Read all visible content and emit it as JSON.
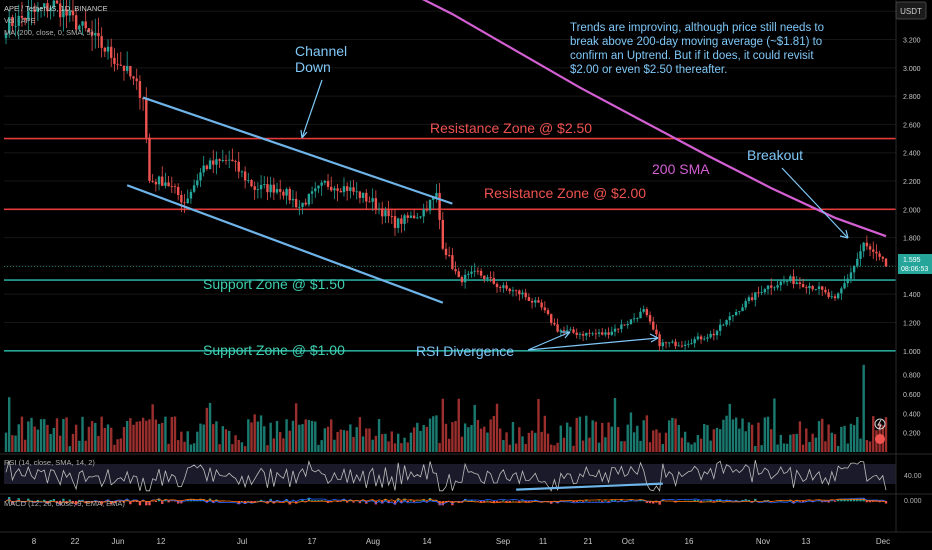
{
  "header": {
    "symbol_line": "APE / TetherUS, 1D, BINANCE",
    "volume_line": "Vol · APE",
    "ma_line": "MA (200, close, 0, SMA, 5)",
    "currency": "USDT"
  },
  "note": {
    "lines": [
      "Trends are improving, although price still needs to",
      "break above 200-day moving average (~$1.81) to",
      "confirm an Uptrend. But if it does, it could revisit",
      "$2.00 or even $2.50 thereafter."
    ]
  },
  "annotations": {
    "channel_down_1": "Channel",
    "channel_down_2": "Down",
    "resistance_250": "Resistance Zone @ $2.50",
    "resistance_200": "Resistance Zone @ $2.00",
    "sma_200": "200 SMA",
    "breakout": "Breakout",
    "support_150": "Support Zone @ $1.50",
    "support_100": "Support Zone @ $1.00",
    "rsi_divergence": "RSI Divergence"
  },
  "price_tag": {
    "price": "1.595",
    "countdown": "08:06:53"
  },
  "rsi_panel": {
    "label": "RSI (14, close, SMA, 14, 2)",
    "level": "40.00"
  },
  "macd_panel": {
    "label": "MACD (12, 26, close, 9, EMA, EMA)",
    "level": "0.000"
  },
  "colors": {
    "up": "#26a69a",
    "down": "#ef5350",
    "channel": "#6fb4e8",
    "resistance": "#e33b3b",
    "support": "#26a69a",
    "sma": "#d35fd3",
    "annot_red": "#ef5350",
    "annot_green": "#3fd0b0",
    "annot_blue": "#7fc8f8"
  },
  "chart_data": {
    "type": "candlestick",
    "x_ticks": [
      "8",
      "22",
      "Jun",
      "12",
      "Jul",
      "17",
      "Aug",
      "14",
      "Sep",
      "11",
      "21",
      "Oct",
      "16",
      "Nov",
      "13",
      "Dec"
    ],
    "price_axis_ticks": [
      "3.400",
      "3.200",
      "3.000",
      "2.800",
      "2.600",
      "2.400",
      "2.200",
      "2.000",
      "1.800",
      "1.600",
      "1.400",
      "1.200",
      "1.000"
    ],
    "volume_axis_ticks": [
      "0.800",
      "0.600",
      "0.400",
      "0.200"
    ],
    "price_range": [
      0.85,
      3.55
    ],
    "anchors": [
      [
        0,
        3.3
      ],
      [
        15,
        3.45
      ],
      [
        28,
        3.2
      ],
      [
        37,
        3.0
      ],
      [
        43,
        2.8
      ],
      [
        45,
        2.2
      ],
      [
        50,
        2.2
      ],
      [
        56,
        2.05
      ],
      [
        62,
        2.3
      ],
      [
        70,
        2.35
      ],
      [
        78,
        2.15
      ],
      [
        86,
        2.15
      ],
      [
        92,
        2.02
      ],
      [
        100,
        2.18
      ],
      [
        107,
        2.15
      ],
      [
        115,
        2.05
      ],
      [
        122,
        1.9
      ],
      [
        130,
        1.97
      ],
      [
        135,
        2.1
      ],
      [
        137,
        1.75
      ],
      [
        142,
        1.5
      ],
      [
        148,
        1.55
      ],
      [
        155,
        1.45
      ],
      [
        162,
        1.4
      ],
      [
        168,
        1.3
      ],
      [
        173,
        1.15
      ],
      [
        180,
        1.12
      ],
      [
        188,
        1.12
      ],
      [
        195,
        1.2
      ],
      [
        200,
        1.28
      ],
      [
        205,
        1.05
      ],
      [
        212,
        1.05
      ],
      [
        222,
        1.12
      ],
      [
        230,
        1.3
      ],
      [
        238,
        1.45
      ],
      [
        246,
        1.5
      ],
      [
        254,
        1.45
      ],
      [
        260,
        1.35
      ],
      [
        266,
        1.6
      ],
      [
        269,
        1.75
      ],
      [
        276,
        1.6
      ]
    ],
    "levels": {
      "resistance": [
        2.5,
        2.0
      ],
      "support": [
        1.5,
        1.0
      ],
      "sma_200_last": 1.81,
      "last_price": 1.595
    },
    "sma_200": [
      [
        125,
        3.55
      ],
      [
        140,
        3.38
      ],
      [
        160,
        3.12
      ],
      [
        180,
        2.86
      ],
      [
        200,
        2.62
      ],
      [
        220,
        2.38
      ],
      [
        240,
        2.15
      ],
      [
        260,
        1.94
      ],
      [
        276,
        1.81
      ]
    ]
  }
}
